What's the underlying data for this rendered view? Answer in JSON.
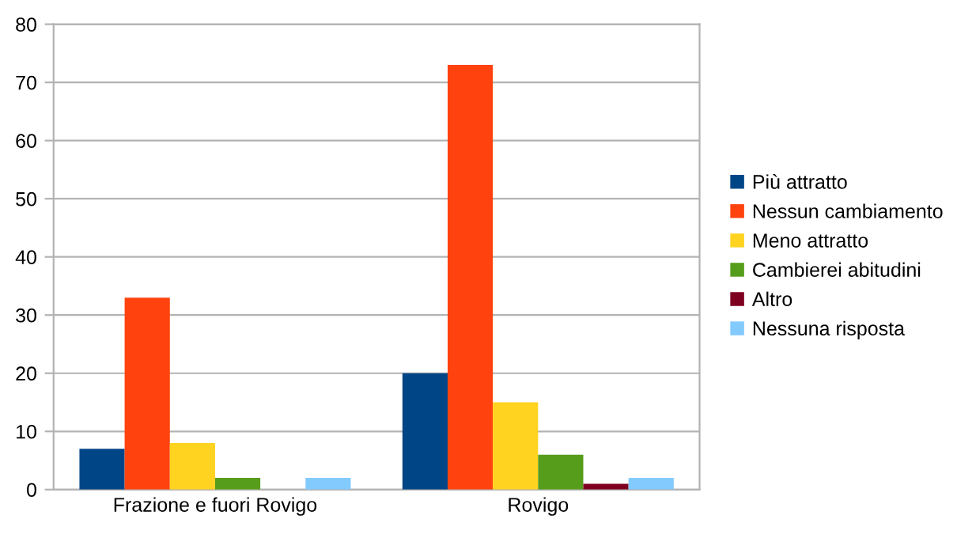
{
  "chart_data": {
    "type": "bar",
    "categories": [
      "Frazione e fuori Rovigo",
      "Rovigo"
    ],
    "series": [
      {
        "name": "Più attratto",
        "color": "#004586",
        "values": [
          7,
          20
        ]
      },
      {
        "name": "Nessun cambiamento",
        "color": "#ff420e",
        "values": [
          33,
          73
        ]
      },
      {
        "name": "Meno attratto",
        "color": "#ffd320",
        "values": [
          8,
          15
        ]
      },
      {
        "name": "Cambierei abitudini",
        "color": "#579d1c",
        "values": [
          2,
          6
        ]
      },
      {
        "name": "Altro",
        "color": "#7e0021",
        "values": [
          0,
          1
        ]
      },
      {
        "name": "Nessuna risposta",
        "color": "#83caff",
        "values": [
          2,
          2
        ]
      }
    ],
    "ylim": [
      0,
      80
    ],
    "yticks": [
      0,
      10,
      20,
      30,
      40,
      50,
      60,
      70,
      80
    ],
    "grid": "y",
    "legend": "right"
  }
}
